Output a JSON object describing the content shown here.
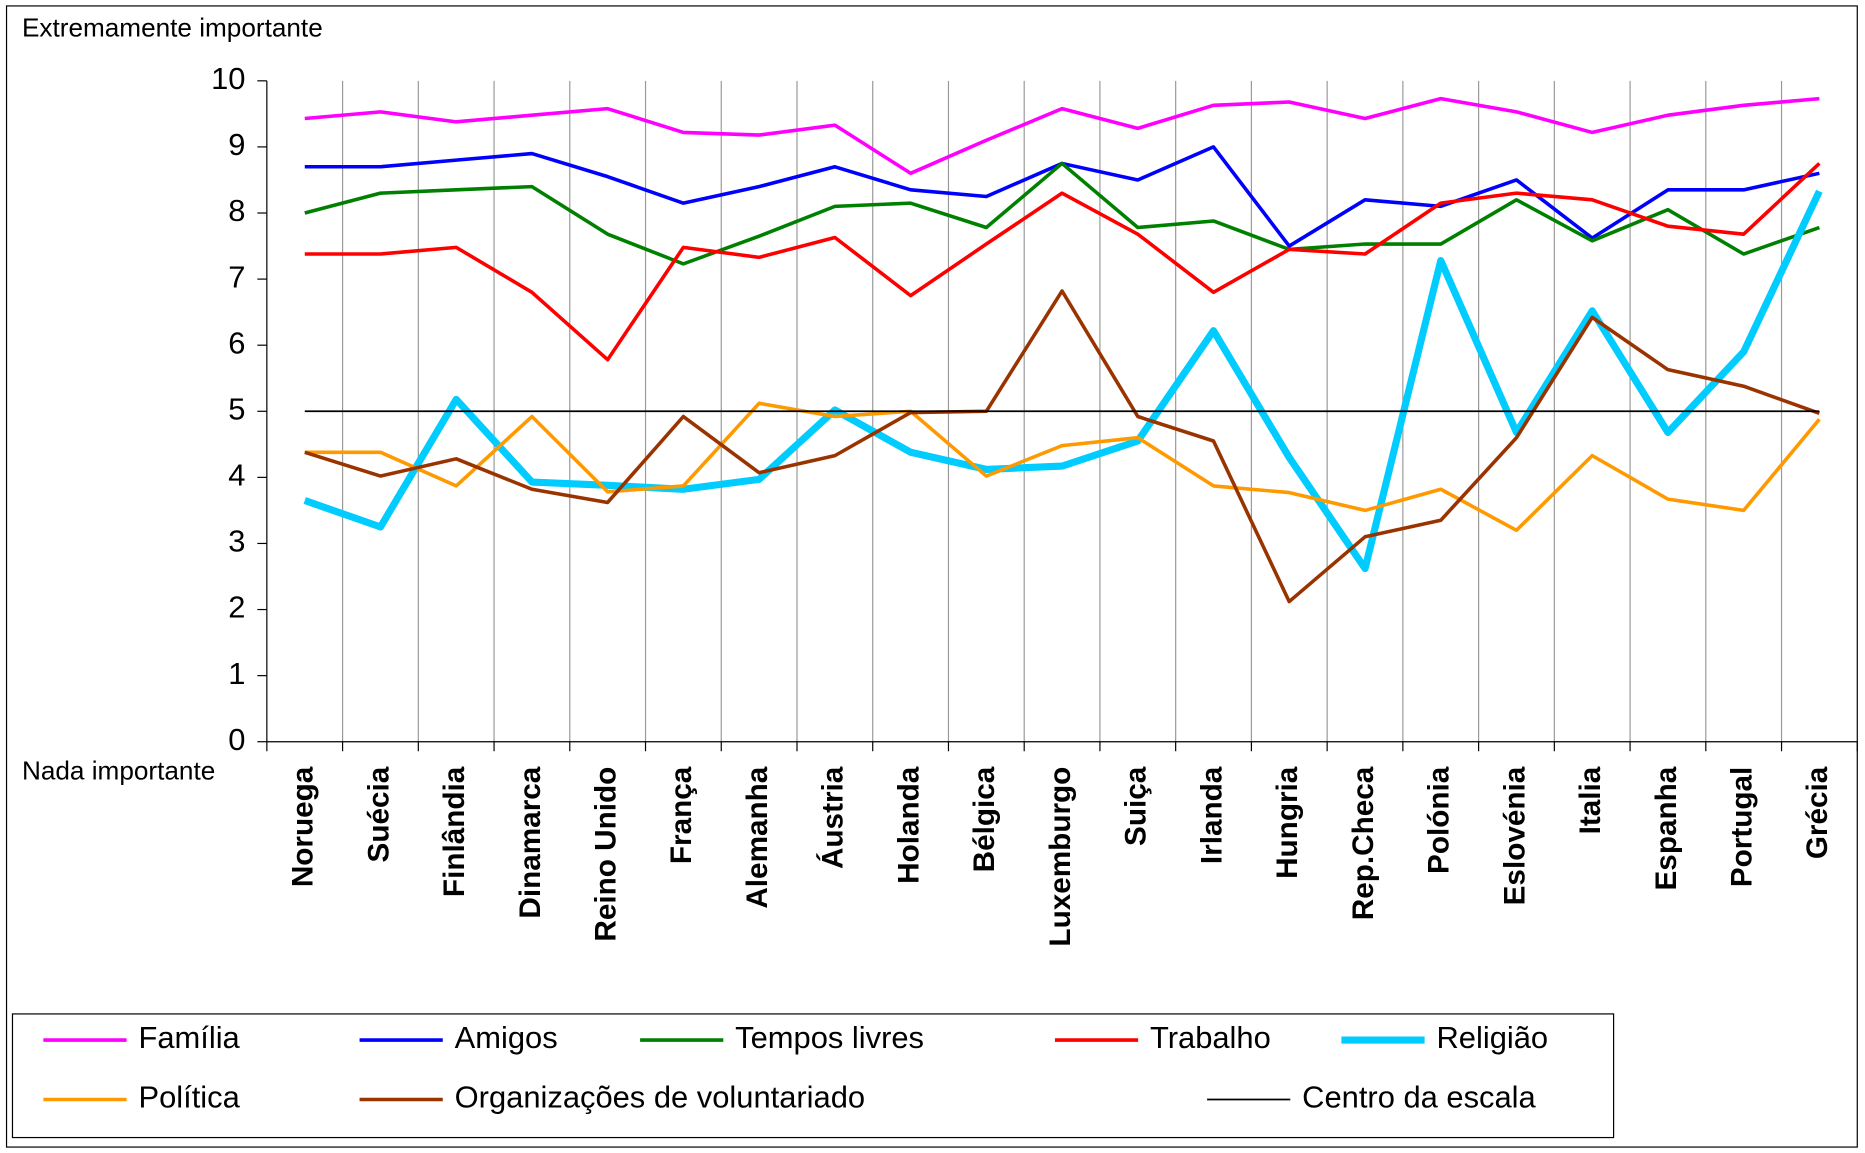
{
  "chart_data": {
    "type": "line",
    "annotations": [
      "Extremamente importante",
      "Nada importante"
    ],
    "categories": [
      "Noruega",
      "Suécia",
      "Finlândia",
      "Dinamarca",
      "Reino Unido",
      "França",
      "Alemanha",
      "Áustria",
      "Holanda",
      "Bélgica",
      "Luxemburgo",
      "Suiça",
      "Irlanda",
      "Hungria",
      "Rep.Checa",
      "Polónia",
      "Eslovénia",
      "Italia",
      "Espanha",
      "Portugal",
      "Grécia"
    ],
    "highlight_category": "Portugal",
    "highlight_color": "#ff0000",
    "ylim": [
      0,
      10
    ],
    "yticks": [
      0,
      1,
      2,
      3,
      4,
      5,
      6,
      7,
      8,
      9,
      10
    ],
    "grid": "vertical",
    "legend": "bottom",
    "series": [
      {
        "name": "Família",
        "color": "#ff00ff",
        "width": 3,
        "values": [
          9.43,
          9.53,
          9.38,
          9.48,
          9.58,
          9.22,
          9.18,
          9.33,
          8.6,
          9.1,
          9.58,
          9.28,
          9.63,
          9.68,
          9.43,
          9.73,
          9.53,
          9.22,
          9.48,
          9.63,
          9.73
        ]
      },
      {
        "name": "Amigos",
        "color": "#0000ff",
        "width": 3,
        "values": [
          8.7,
          8.7,
          8.8,
          8.9,
          8.55,
          8.15,
          8.4,
          8.7,
          8.35,
          8.25,
          8.75,
          8.5,
          9.0,
          7.5,
          8.2,
          8.1,
          8.5,
          7.62,
          8.35,
          8.35,
          8.6
        ]
      },
      {
        "name": "Tempos livres",
        "color": "#008000",
        "width": 3,
        "values": [
          8.0,
          8.3,
          8.35,
          8.4,
          7.68,
          7.23,
          7.65,
          8.1,
          8.15,
          7.78,
          8.75,
          7.78,
          7.88,
          7.45,
          7.53,
          7.53,
          8.2,
          7.58,
          8.05,
          7.38,
          7.78
        ]
      },
      {
        "name": "Trabalho",
        "color": "#ff0000",
        "width": 3,
        "values": [
          7.38,
          7.38,
          7.48,
          6.8,
          5.78,
          7.48,
          7.33,
          7.63,
          6.75,
          7.53,
          8.3,
          7.68,
          6.8,
          7.45,
          7.38,
          8.15,
          8.3,
          8.2,
          7.8,
          7.68,
          8.75
        ]
      },
      {
        "name": "Religião",
        "color": "#00ccff",
        "width": 6,
        "values": [
          3.65,
          3.25,
          5.18,
          3.93,
          3.88,
          3.82,
          3.97,
          5.02,
          4.38,
          4.12,
          4.17,
          4.55,
          6.22,
          4.3,
          2.62,
          7.28,
          4.68,
          6.52,
          4.68,
          5.9,
          8.33
        ]
      },
      {
        "name": "Política",
        "color": "#ff9900",
        "width": 3,
        "values": [
          4.38,
          4.38,
          3.87,
          4.92,
          3.78,
          3.87,
          5.12,
          4.92,
          5.0,
          4.02,
          4.48,
          4.6,
          3.87,
          3.77,
          3.5,
          3.82,
          3.2,
          4.33,
          3.67,
          3.5,
          4.88
        ]
      },
      {
        "name": "Organizações de voluntariado",
        "color": "#993300",
        "width": 3,
        "values": [
          4.38,
          4.02,
          4.28,
          3.82,
          3.62,
          4.92,
          4.07,
          4.33,
          4.98,
          5.0,
          6.82,
          4.92,
          4.55,
          2.12,
          3.1,
          3.35,
          4.6,
          6.42,
          5.63,
          5.38,
          4.97
        ]
      },
      {
        "name": "Centro da escala",
        "color": "#000000",
        "width": 1.5,
        "values": [
          5,
          5,
          5,
          5,
          5,
          5,
          5,
          5,
          5,
          5,
          5,
          5,
          5,
          5,
          5,
          5,
          5,
          5,
          5,
          5,
          5
        ]
      }
    ]
  }
}
